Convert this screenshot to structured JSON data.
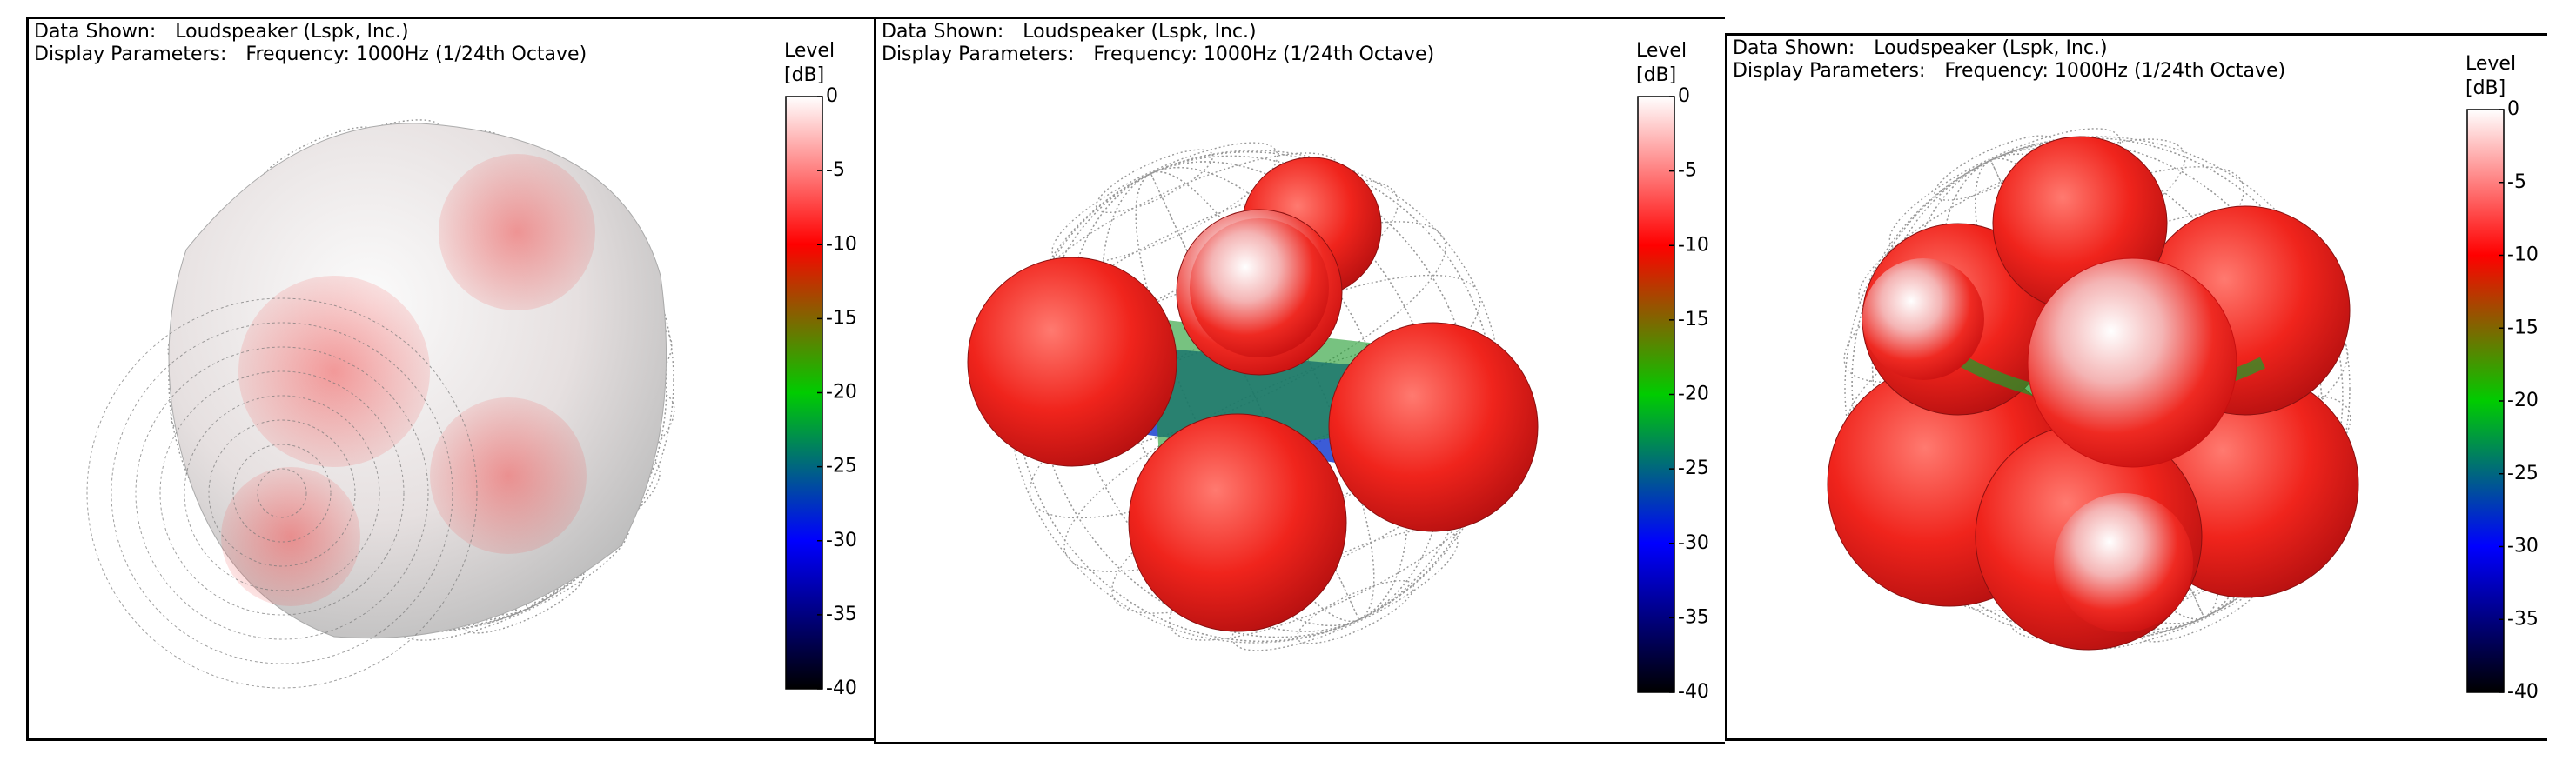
{
  "panels": [
    {
      "data_shown_label": "Data Shown:",
      "data_shown": "Loudspeaker (Lspk, Inc.)",
      "display_label": "Display Parameters:",
      "display": "Frequency: 1000Hz (1/24th Octave)",
      "colorbar": {
        "title": "Level",
        "unit": "[dB]",
        "lim": [
          -40,
          0
        ],
        "ticks": [
          0,
          -5,
          -10,
          -15,
          -20,
          -25,
          -30,
          -35,
          -40
        ]
      }
    },
    {
      "data_shown_label": "Data Shown:",
      "data_shown": "Loudspeaker (Lspk, Inc.)",
      "display_label": "Display Parameters:",
      "display": "Frequency: 1000Hz (1/24th Octave)",
      "colorbar": {
        "title": "Level",
        "unit": "[dB]",
        "lim": [
          -40,
          0
        ],
        "ticks": [
          0,
          -5,
          -10,
          -15,
          -20,
          -25,
          -30,
          -35,
          -40
        ]
      }
    },
    {
      "data_shown_label": "Data Shown:",
      "data_shown": "Loudspeaker (Lspk, Inc.)",
      "display_label": "Display Parameters:",
      "display": "Frequency: 1000Hz (1/24th Octave)",
      "colorbar": {
        "title": "Level",
        "unit": "[dB]",
        "lim": [
          -40,
          0
        ],
        "ticks": [
          0,
          -5,
          -10,
          -15,
          -20,
          -25,
          -30,
          -35,
          -40
        ]
      }
    }
  ]
}
